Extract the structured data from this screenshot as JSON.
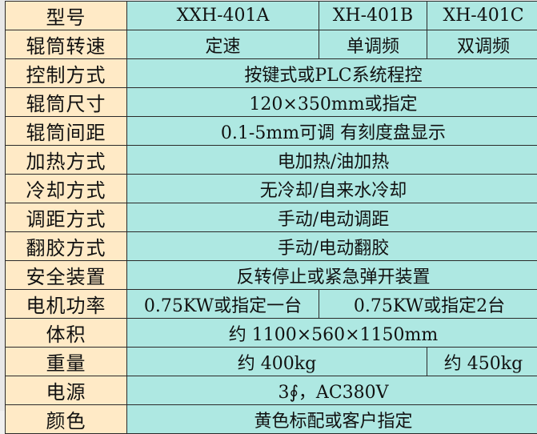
{
  "colors": {
    "label_bg": "#FFEAC6",
    "value_bg": "#AEE8E2",
    "border": "#2a2a2a"
  },
  "rows": [
    {
      "label": "型号",
      "cells": [
        {
          "text": "XXH-401A",
          "span": 1
        },
        {
          "text": "XH-401B",
          "span": 1
        },
        {
          "text": "XH-401C",
          "span": 1
        }
      ]
    },
    {
      "label": "辊筒转速",
      "cells": [
        {
          "text": "定速",
          "span": 1
        },
        {
          "text": "单调频",
          "span": 1
        },
        {
          "text": "双调频",
          "span": 1
        }
      ]
    },
    {
      "label": "控制方式",
      "cells": [
        {
          "text": "按键式或PLC系统程控",
          "span": 3
        }
      ]
    },
    {
      "label": "辊筒尺寸",
      "cells": [
        {
          "text": "120×350mm或指定",
          "span": 3
        }
      ]
    },
    {
      "label": "辊筒间距",
      "cells": [
        {
          "text": "0.1-5mm可调 有刻度盘显示",
          "span": 3
        }
      ]
    },
    {
      "label": "加热方式",
      "cells": [
        {
          "text": "电加热/油加热",
          "span": 3
        }
      ]
    },
    {
      "label": "冷却方式",
      "cells": [
        {
          "text": "无冷却/自来水冷却",
          "span": 3
        }
      ]
    },
    {
      "label": "调距方式",
      "cells": [
        {
          "text": "手动/电动调距",
          "span": 3
        }
      ]
    },
    {
      "label": "翻胶方式",
      "cells": [
        {
          "text": "手动/电动翻胶",
          "span": 3
        }
      ]
    },
    {
      "label": "安全装置",
      "cells": [
        {
          "text": "反转停止或紧急弹开装置",
          "span": 3
        }
      ]
    },
    {
      "label": "电机功率",
      "cells": [
        {
          "text": "0.75KW或指定一台",
          "span": 1
        },
        {
          "text": "0.75KW或指定2台",
          "span": 2
        }
      ]
    },
    {
      "label": "体积",
      "cells": [
        {
          "text": "约 1100×560×1150mm",
          "span": 3
        }
      ]
    },
    {
      "label": "重量",
      "cells": [
        {
          "text": "约 400kg",
          "span": 2
        },
        {
          "text": "约 450kg",
          "span": 1
        }
      ]
    },
    {
      "label": "电源",
      "cells": [
        {
          "text": "3∮，AC380V",
          "span": 3
        }
      ]
    },
    {
      "label": "颜色",
      "cells": [
        {
          "text": "黄色标配或客户指定",
          "span": 3
        }
      ]
    }
  ]
}
